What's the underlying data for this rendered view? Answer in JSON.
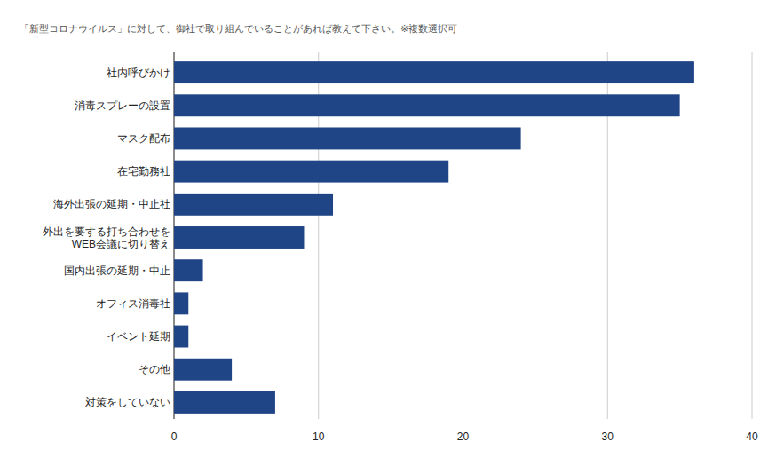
{
  "chart_data": {
    "type": "bar",
    "orientation": "horizontal",
    "title": "「新型コロナウイルス」に対して、御社で取り組んでいることがあれば教えて下さい。※複数選択可",
    "categories": [
      "社内呼びかけ",
      "消毒スプレーの設置",
      "マスク配布",
      "在宅勤務社",
      "海外出張の延期・中止社",
      "外出を要する打ち合わせを\nWEB会議に切り替え",
      "国内出張の延期・中止",
      "オフィス消毒社",
      "イベント延期",
      "その他",
      "対策をしていない"
    ],
    "values": [
      36,
      35,
      24,
      19,
      11,
      9,
      2,
      1,
      1,
      4,
      7
    ],
    "color": "#1f4586",
    "xlim": [
      0,
      40
    ],
    "xticks": [
      0,
      10,
      20,
      30,
      40
    ],
    "grid": true
  }
}
